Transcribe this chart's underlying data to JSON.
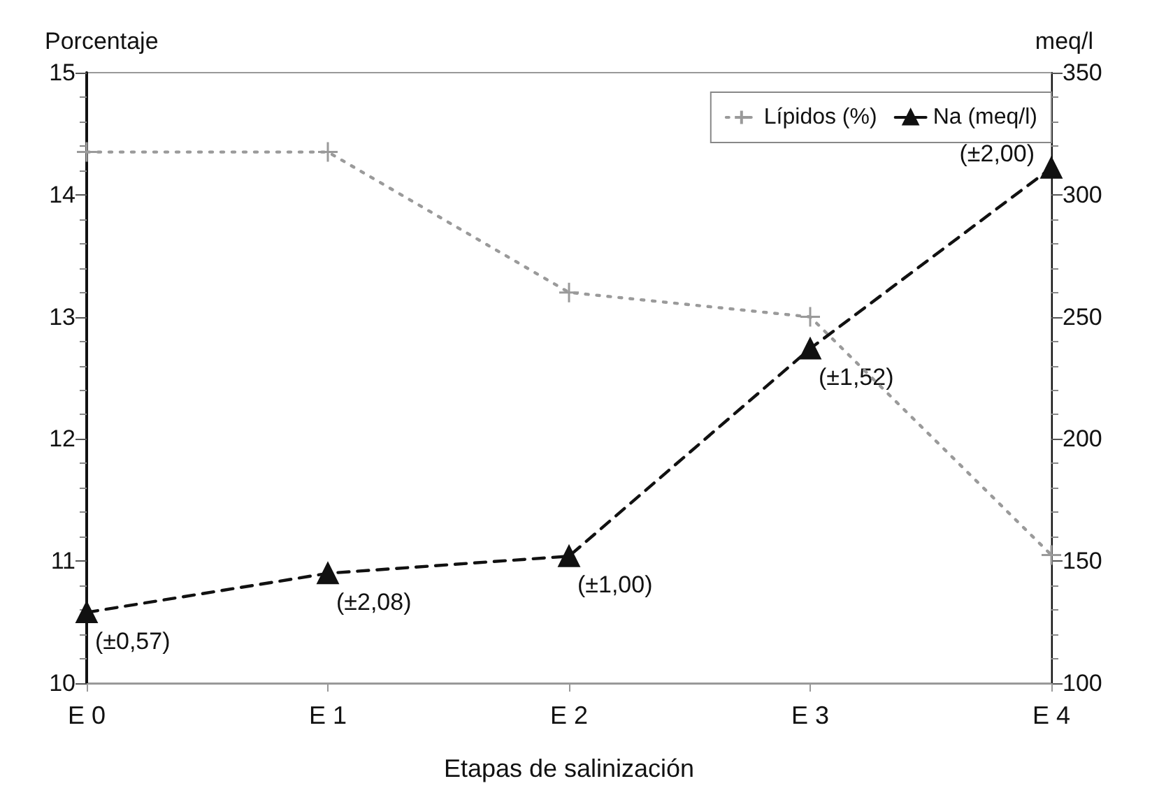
{
  "chart_data": {
    "type": "line",
    "xlabel": "Etapas de salinización",
    "ylabel": "Porcentaje",
    "y2label": "meq/l",
    "categories": [
      "E 0",
      "E 1",
      "E 2",
      "E 3",
      "E 4"
    ],
    "series": [
      {
        "name": "Lípidos (%)",
        "color": "#9a9a9a",
        "marker": "cross",
        "line_style": "dotted",
        "values": [
          14.35,
          14.35,
          13.2,
          13.0,
          11.05
        ]
      },
      {
        "name": "Na (meq/l)",
        "color": "#111111",
        "marker": "triangle",
        "line_style": "dashed",
        "axis": "y2",
        "values": [
          129,
          145,
          152,
          237,
          311
        ]
      }
    ],
    "annotations": [
      {
        "text": "(±0,57)",
        "x": "E 0",
        "y": 10.58
      },
      {
        "text": "(±2,08)",
        "x": "E 1",
        "y": 10.9
      },
      {
        "text": "(±1,00)",
        "x": "E 2",
        "y": 11.04
      },
      {
        "text": "(±1,52)",
        "x": "E 3",
        "y": 12.74
      },
      {
        "text": "(±2,00)",
        "x": "E 4",
        "y": 14.22
      }
    ],
    "ylim": [
      10,
      15
    ],
    "yticks": [
      10,
      11,
      12,
      13,
      14,
      15
    ],
    "y2lim": [
      100,
      350
    ],
    "y2ticks": [
      100,
      150,
      200,
      250,
      300,
      350
    ],
    "grid": false,
    "legend": "top right"
  }
}
